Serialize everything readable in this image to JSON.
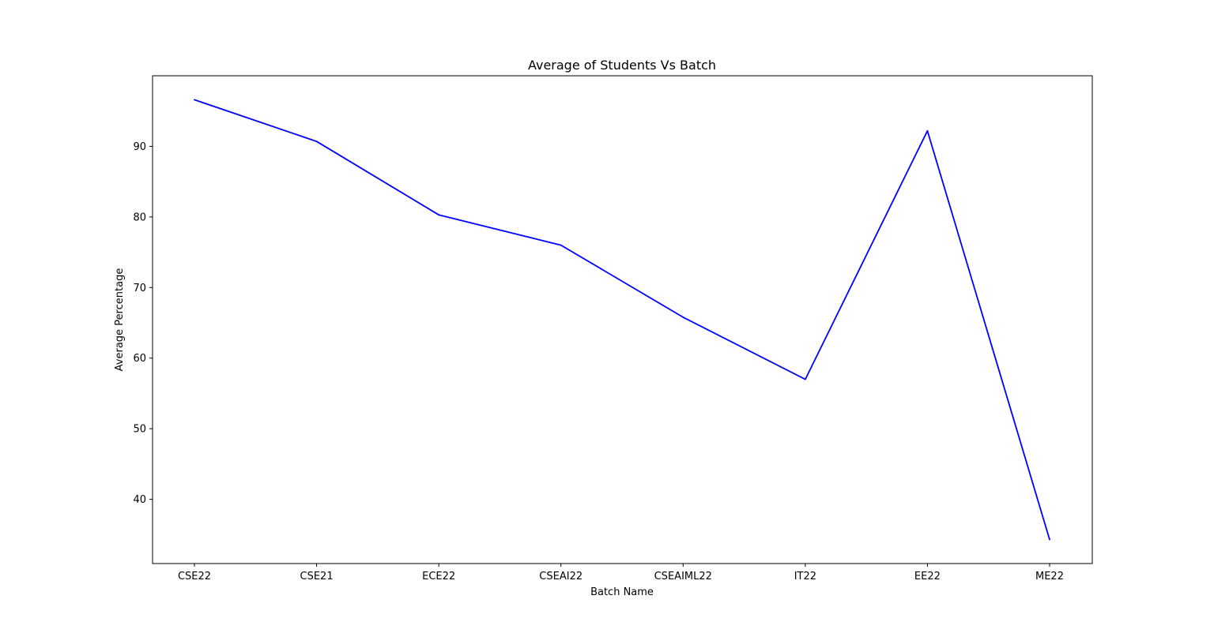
{
  "chart_data": {
    "type": "line",
    "title": "Average of Students Vs Batch",
    "xlabel": "Batch Name",
    "ylabel": "Average Percentage",
    "categories": [
      "CSE22",
      "CSE21",
      "ECE22",
      "CSEAI22",
      "CSEAIML22",
      "IT22",
      "EE22",
      "ME22"
    ],
    "series": [
      {
        "values": [
          96.6,
          90.7,
          80.3,
          76.0,
          65.8,
          57.0,
          92.2,
          34.3
        ],
        "color": "#0000ff"
      }
    ],
    "yticks": [
      40,
      50,
      60,
      70,
      80,
      90
    ],
    "ylim": [
      30.9,
      100.0
    ],
    "grid": false,
    "legend": "none"
  }
}
